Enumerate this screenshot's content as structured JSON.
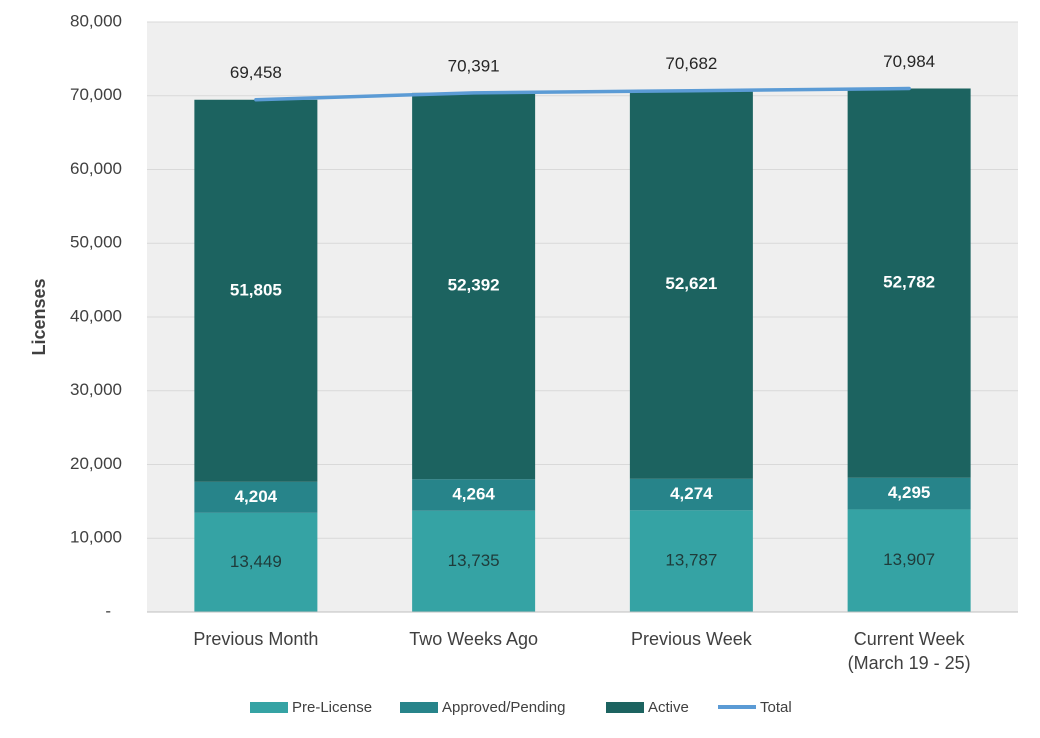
{
  "chart_data": {
    "type": "bar",
    "stacked": true,
    "categories": [
      [
        "Previous Month"
      ],
      [
        "Two Weeks Ago"
      ],
      [
        "Previous Week"
      ],
      [
        "Current Week",
        "(March 19 - 25)"
      ]
    ],
    "series": [
      {
        "name": "Pre-License",
        "color": "#35a3a4",
        "values": [
          13449,
          13735,
          13787,
          13907
        ]
      },
      {
        "name": "Approved/Pending",
        "color": "#27848a",
        "values": [
          4204,
          4264,
          4274,
          4295
        ]
      },
      {
        "name": "Active",
        "color": "#1c6360",
        "values": [
          51805,
          52392,
          52621,
          52782
        ]
      }
    ],
    "total_line": {
      "name": "Total",
      "color": "#5b9bd5",
      "values": [
        69458,
        70391,
        70682,
        70984
      ]
    },
    "data_labels": {
      "Pre-License": [
        "13,449",
        "13,735",
        "13,787",
        "13,907"
      ],
      "Approved/Pending": [
        "4,204",
        "4,264",
        "4,274",
        "4,295"
      ],
      "Active": [
        "51,805",
        "52,392",
        "52,621",
        "52,782"
      ],
      "Total": [
        "69,458",
        "70,391",
        "70,682",
        "70,984"
      ]
    },
    "ylabel": "Licenses",
    "ylim": [
      0,
      80000
    ],
    "yticks": [
      0,
      10000,
      20000,
      30000,
      40000,
      50000,
      60000,
      70000,
      80000
    ],
    "ytick_labels": [
      "-",
      "10,000",
      "20,000",
      "30,000",
      "40,000",
      "50,000",
      "60,000",
      "70,000",
      "80,000"
    ],
    "grid": true,
    "legend": {
      "position": "bottom",
      "entries": [
        "Pre-License",
        "Approved/Pending",
        "Active",
        "Total"
      ]
    },
    "plot_background": "#efefef"
  }
}
